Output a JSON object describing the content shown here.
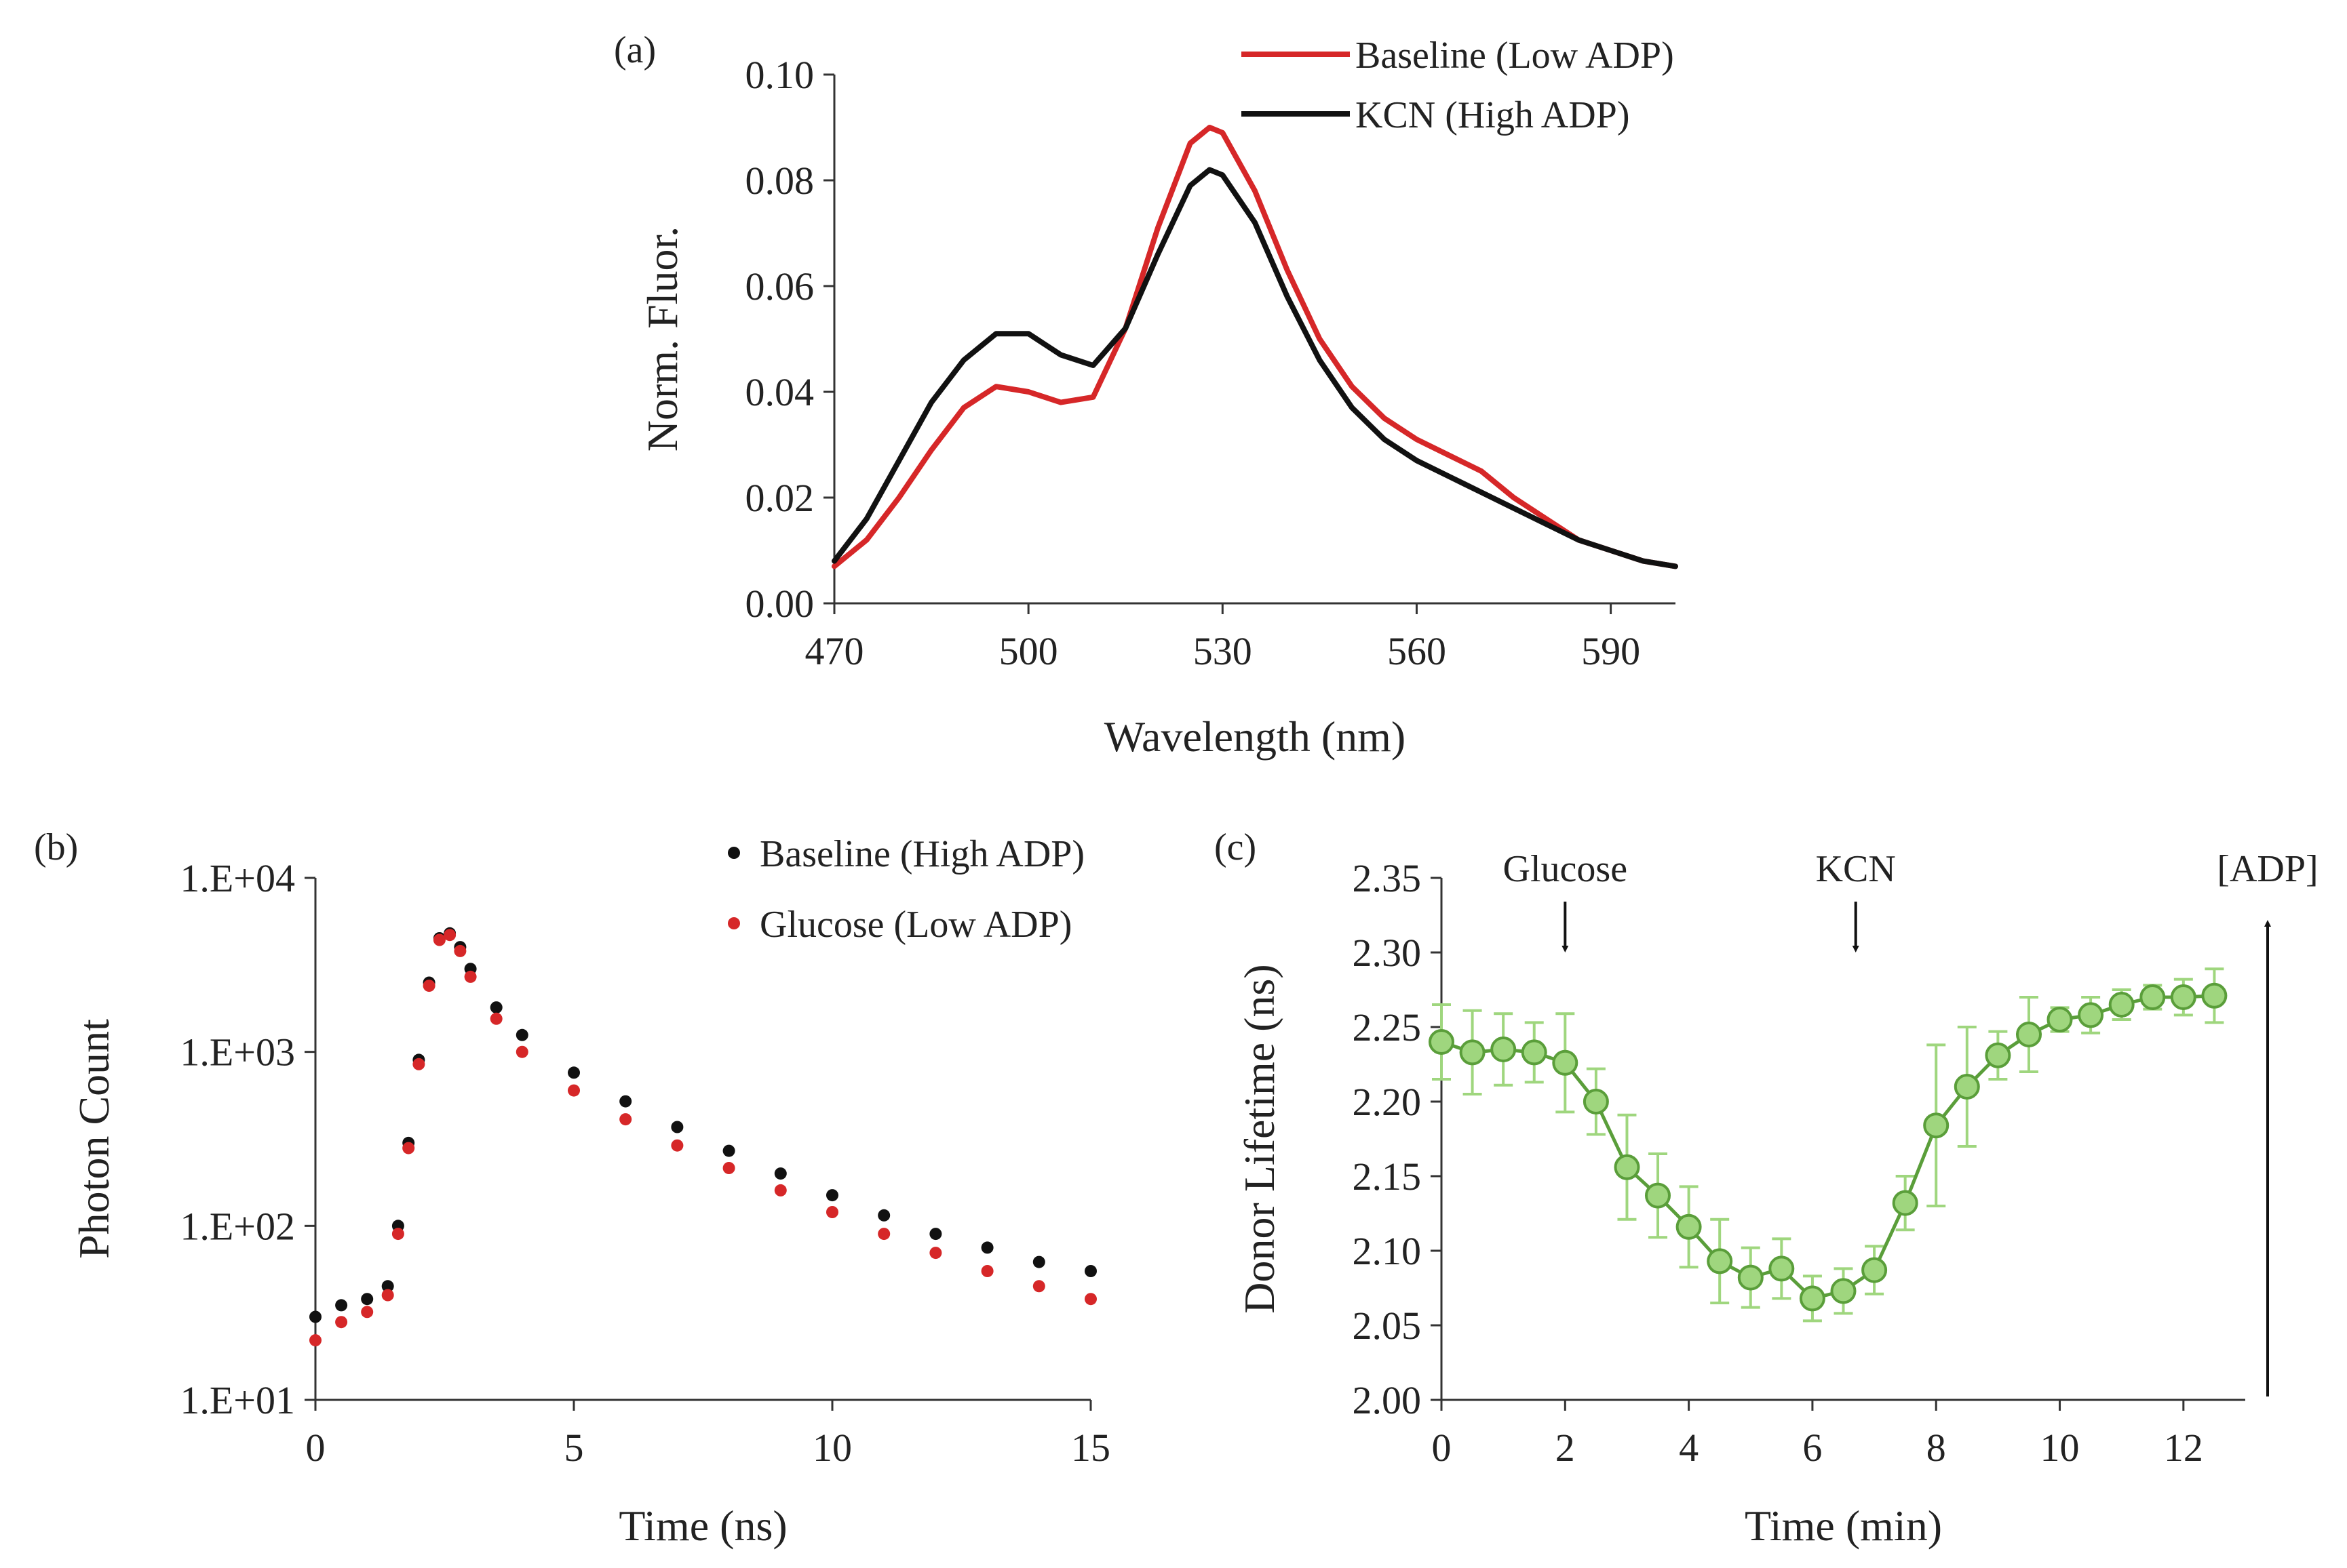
{
  "figure": {
    "panel_labels": [
      "(a)",
      "(b)",
      "(c)"
    ]
  },
  "chart_data": [
    {
      "id": "a",
      "type": "line",
      "panel_label": "(a)",
      "xlabel": "Wavelength (nm)",
      "ylabel": "Norm. Fluor.",
      "xlim": [
        470,
        600
      ],
      "ylim": [
        0,
        0.1
      ],
      "xticks": [
        470,
        500,
        530,
        560,
        590
      ],
      "yticks": [
        0.0,
        0.02,
        0.04,
        0.06,
        0.08,
        0.1
      ],
      "xtick_labels": [
        "470",
        "500",
        "530",
        "560",
        "590"
      ],
      "ytick_labels": [
        "0.00",
        "0.02",
        "0.04",
        "0.06",
        "0.08",
        "0.10"
      ],
      "legend": {
        "position": "top-right"
      },
      "series": [
        {
          "name": "Baseline (Low ADP)",
          "color": "#d62728",
          "x": [
            470,
            475,
            480,
            485,
            490,
            495,
            500,
            505,
            510,
            515,
            520,
            525,
            528,
            530,
            535,
            540,
            545,
            550,
            555,
            560,
            565,
            570,
            575,
            580,
            585,
            590,
            595,
            600
          ],
          "y": [
            0.007,
            0.012,
            0.02,
            0.029,
            0.037,
            0.041,
            0.04,
            0.038,
            0.039,
            0.052,
            0.071,
            0.087,
            0.09,
            0.089,
            0.078,
            0.063,
            0.05,
            0.041,
            0.035,
            0.031,
            0.028,
            0.025,
            0.02,
            0.016,
            0.012,
            0.01,
            0.008,
            0.007
          ]
        },
        {
          "name": "KCN (High ADP)",
          "color": "#111111",
          "x": [
            470,
            475,
            480,
            485,
            490,
            495,
            500,
            505,
            510,
            515,
            520,
            525,
            528,
            530,
            535,
            540,
            545,
            550,
            555,
            560,
            565,
            570,
            575,
            580,
            585,
            590,
            595,
            600
          ],
          "y": [
            0.008,
            0.016,
            0.027,
            0.038,
            0.046,
            0.051,
            0.051,
            0.047,
            0.045,
            0.052,
            0.066,
            0.079,
            0.082,
            0.081,
            0.072,
            0.058,
            0.046,
            0.037,
            0.031,
            0.027,
            0.024,
            0.021,
            0.018,
            0.015,
            0.012,
            0.01,
            0.008,
            0.007
          ]
        }
      ]
    },
    {
      "id": "b",
      "type": "scatter",
      "panel_label": "(b)",
      "xlabel": "Time (ns)",
      "ylabel": "Photon Count",
      "yscale": "log",
      "xlim": [
        0,
        15
      ],
      "ylim": [
        10,
        10000
      ],
      "xticks": [
        0,
        5,
        10,
        15
      ],
      "yticks": [
        10,
        100,
        1000,
        10000
      ],
      "xtick_labels": [
        "0",
        "5",
        "10",
        "15"
      ],
      "ytick_labels": [
        "1.E+01",
        "1.E+02",
        "1.E+03",
        "1.E+04"
      ],
      "legend": {
        "position": "top-right"
      },
      "series": [
        {
          "name": "Baseline (High ADP)",
          "color": "#111111",
          "x": [
            0,
            0.5,
            1.0,
            1.4,
            1.6,
            1.8,
            2.0,
            2.2,
            2.4,
            2.6,
            2.8,
            3.0,
            3.5,
            4.0,
            5.0,
            6.0,
            7.0,
            8.0,
            9.0,
            10.0,
            11.0,
            12.0,
            13.0,
            14.0,
            15.0
          ],
          "y": [
            30,
            35,
            38,
            45,
            100,
            300,
            900,
            2500,
            4500,
            4800,
            4000,
            3000,
            1800,
            1250,
            760,
            520,
            370,
            270,
            200,
            150,
            115,
            90,
            75,
            62,
            55
          ]
        },
        {
          "name": "Glucose (Low ADP)",
          "color": "#d62728",
          "x": [
            0,
            0.5,
            1.0,
            1.4,
            1.6,
            1.8,
            2.0,
            2.2,
            2.4,
            2.6,
            2.8,
            3.0,
            3.5,
            4.0,
            5.0,
            6.0,
            7.0,
            8.0,
            9.0,
            10.0,
            11.0,
            12.0,
            13.0,
            14.0,
            15.0
          ],
          "y": [
            22,
            28,
            32,
            40,
            90,
            280,
            850,
            2400,
            4400,
            4700,
            3800,
            2700,
            1550,
            1000,
            600,
            410,
            290,
            215,
            160,
            120,
            90,
            70,
            55,
            45,
            38
          ]
        }
      ]
    },
    {
      "id": "c",
      "type": "line",
      "panel_label": "(c)",
      "xlabel": "Time (min)",
      "ylabel": "Donor Lifetime (ns)",
      "xlim": [
        0,
        13
      ],
      "ylim": [
        2.0,
        2.35
      ],
      "xticks": [
        0,
        2,
        4,
        6,
        8,
        10,
        12
      ],
      "yticks": [
        2.0,
        2.05,
        2.1,
        2.15,
        2.2,
        2.25,
        2.3,
        2.35
      ],
      "xtick_labels": [
        "0",
        "2",
        "4",
        "6",
        "8",
        "10",
        "12"
      ],
      "ytick_labels": [
        "2.00",
        "2.05",
        "2.10",
        "2.15",
        "2.20",
        "2.25",
        "2.30",
        "2.35"
      ],
      "series": [
        {
          "name": "Donor Lifetime",
          "color": "#5a9e3a",
          "marker_fill": "#9fd67e",
          "x": [
            0,
            0.5,
            1.0,
            1.5,
            2.0,
            2.5,
            3.0,
            3.5,
            4.0,
            4.5,
            5.0,
            5.5,
            6.0,
            6.5,
            7.0,
            7.5,
            8.0,
            8.5,
            9.0,
            9.5,
            10.0,
            10.5,
            11.0,
            11.5,
            12.0,
            12.5
          ],
          "y": [
            2.24,
            2.233,
            2.235,
            2.233,
            2.226,
            2.2,
            2.156,
            2.137,
            2.116,
            2.093,
            2.082,
            2.088,
            2.068,
            2.073,
            2.087,
            2.132,
            2.184,
            2.21,
            2.231,
            2.245,
            2.255,
            2.258,
            2.265,
            2.27,
            2.27,
            2.271
          ],
          "err": [
            0.025,
            0.028,
            0.024,
            0.02,
            0.033,
            0.022,
            0.035,
            0.028,
            0.027,
            0.028,
            0.02,
            0.02,
            0.015,
            0.015,
            0.016,
            0.018,
            0.054,
            0.04,
            0.016,
            0.025,
            0.008,
            0.012,
            0.01,
            0.008,
            0.012,
            0.018
          ]
        }
      ],
      "annotations": [
        {
          "text": "Glucose",
          "x": 2
        },
        {
          "text": "KCN",
          "x": 6.7
        },
        {
          "text": "[ADP]",
          "x": 13
        }
      ]
    }
  ]
}
